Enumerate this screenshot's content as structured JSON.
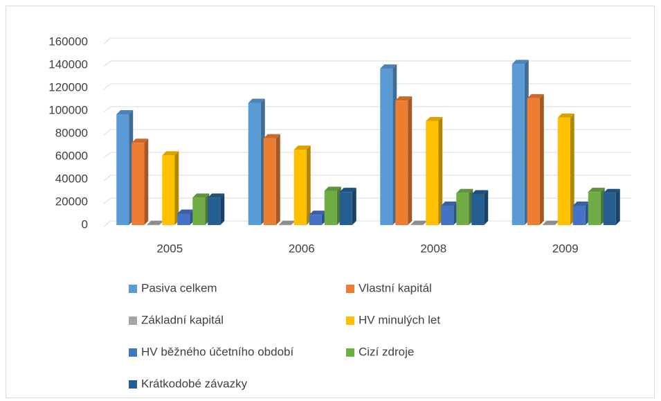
{
  "chart_data": {
    "type": "bar3d",
    "categories": [
      "2005",
      "2006",
      "2008",
      "2009"
    ],
    "series": [
      {
        "name": "Pasiva celkem",
        "color": "#5b9bd5",
        "values": [
          97000,
          107000,
          137000,
          141000
        ]
      },
      {
        "name": "Vlastní kapitál",
        "color": "#ed7d31",
        "values": [
          72000,
          76000,
          109000,
          111000
        ]
      },
      {
        "name": "Základní kapitál",
        "color": "#a5a5a5",
        "values": [
          200,
          200,
          200,
          200
        ]
      },
      {
        "name": "HV minulých let",
        "color": "#ffc000",
        "values": [
          61000,
          66000,
          91000,
          94000
        ]
      },
      {
        "name": "HV běžného účetního období",
        "color": "#4472c4",
        "values": [
          10000,
          9000,
          17000,
          17000
        ]
      },
      {
        "name": "Cizí zdroje",
        "color": "#70ad47",
        "values": [
          24000,
          30000,
          28000,
          29000
        ]
      },
      {
        "name": "Krátkodobé závazky",
        "color": "#255e91",
        "values": [
          24000,
          29000,
          27000,
          28000
        ]
      }
    ],
    "ylim": [
      0,
      160000
    ],
    "yticks": [
      0,
      20000,
      40000,
      60000,
      80000,
      100000,
      120000,
      140000,
      160000
    ],
    "grid": true
  }
}
